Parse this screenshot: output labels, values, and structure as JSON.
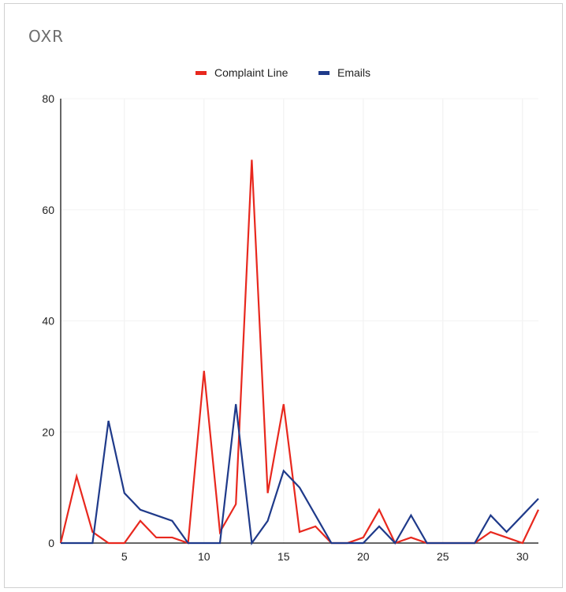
{
  "chart_data": {
    "type": "line",
    "title": "OXR",
    "xlabel": "",
    "ylabel": "",
    "x": [
      1,
      2,
      3,
      4,
      5,
      6,
      7,
      8,
      9,
      10,
      11,
      12,
      13,
      14,
      15,
      16,
      17,
      18,
      19,
      20,
      21,
      22,
      23,
      24,
      25,
      26,
      27,
      28,
      29,
      30,
      31
    ],
    "xlim": [
      1,
      31
    ],
    "ylim": [
      0,
      80
    ],
    "xticks": [
      5,
      10,
      15,
      20,
      25,
      30
    ],
    "yticks": [
      0,
      20,
      40,
      60,
      80
    ],
    "grid": true,
    "legend_position": "top-center",
    "series": [
      {
        "name": "Complaint Line",
        "color": "#e8281e",
        "values": [
          0,
          12,
          2,
          0,
          0,
          4,
          1,
          1,
          0,
          31,
          2,
          7,
          69,
          9,
          25,
          2,
          3,
          0,
          0,
          1,
          6,
          0,
          1,
          0,
          0,
          0,
          0,
          2,
          1,
          0,
          6
        ]
      },
      {
        "name": "Emails",
        "color": "#1f3a8a",
        "values": [
          0,
          0,
          0,
          22,
          9,
          6,
          5,
          4,
          0,
          0,
          0,
          25,
          0,
          4,
          13,
          10,
          5,
          0,
          0,
          0,
          3,
          0,
          5,
          0,
          0,
          0,
          0,
          5,
          2,
          5,
          8
        ]
      }
    ]
  }
}
